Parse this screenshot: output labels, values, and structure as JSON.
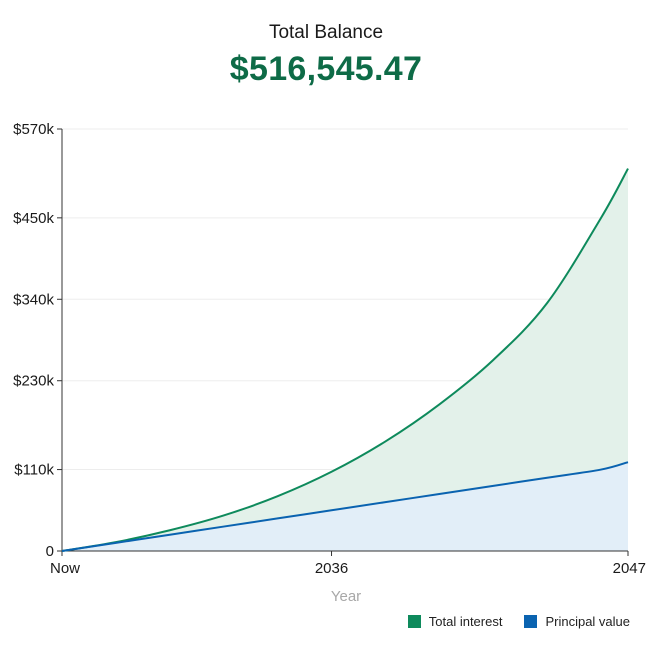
{
  "header": {
    "title": "Total Balance",
    "value": "$516,545.47"
  },
  "colors": {
    "interest": "#0e8a5c",
    "interest_fill": "#e3f1ea",
    "principal": "#0a63b0",
    "principal_fill": "#e2eef8"
  },
  "legend": {
    "interest_label": "Total interest",
    "principal_label": "Principal value"
  },
  "chart_data": {
    "type": "area",
    "xlabel": "Year",
    "ylabel": "",
    "x_ticks": [
      "Now",
      "2036",
      "2047"
    ],
    "y_ticks": [
      "0",
      "$110k",
      "$230k",
      "$340k",
      "$450k",
      "$570k"
    ],
    "y_tick_values": [
      0,
      110000,
      230000,
      340000,
      450000,
      570000
    ],
    "ylim": [
      0,
      570000
    ],
    "xlim": [
      2026,
      2047
    ],
    "grid": true,
    "legend_position": "bottom-right",
    "series": [
      {
        "name": "Total interest",
        "x": [
          2026,
          2028,
          2030,
          2032,
          2034,
          2036,
          2038,
          2040,
          2042,
          2044,
          2046,
          2047
        ],
        "values": [
          0,
          12000,
          28000,
          48000,
          74000,
          107000,
          148000,
          198000,
          258000,
          335000,
          450000,
          516545
        ]
      },
      {
        "name": "Principal value",
        "x": [
          2026,
          2028,
          2030,
          2032,
          2034,
          2036,
          2038,
          2040,
          2042,
          2044,
          2046,
          2047
        ],
        "values": [
          0,
          11000,
          22000,
          33000,
          44000,
          55000,
          66000,
          77000,
          88000,
          99000,
          110000,
          120000
        ]
      }
    ]
  }
}
